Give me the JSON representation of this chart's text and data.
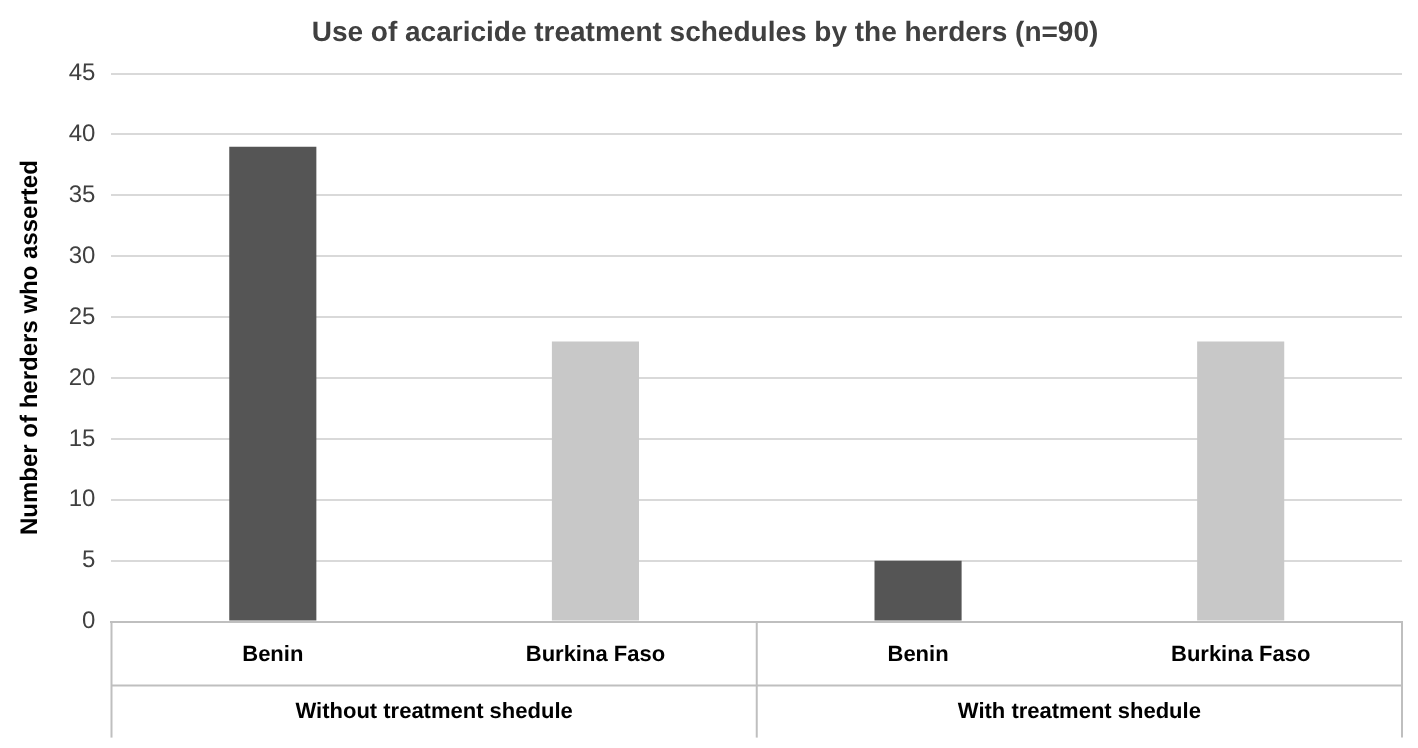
{
  "chart_data": {
    "type": "bar",
    "title": "Use of acaricide treatment schedules by the herders (n=90)",
    "ylabel": "Number of herders who asserted",
    "categories": [
      "Benin",
      "Burkina Faso",
      "Benin",
      "Burkina Faso"
    ],
    "values": [
      39,
      23,
      5,
      23
    ],
    "colors": [
      "#555555",
      "#c8c8c8",
      "#555555",
      "#c8c8c8"
    ],
    "ylim": [
      0,
      45
    ],
    "yticks": [
      0,
      5,
      10,
      15,
      20,
      25,
      30,
      35,
      40,
      45
    ],
    "grid": "y",
    "annotations": [
      "Without treatment shedule",
      "With treatment shedule"
    ]
  }
}
